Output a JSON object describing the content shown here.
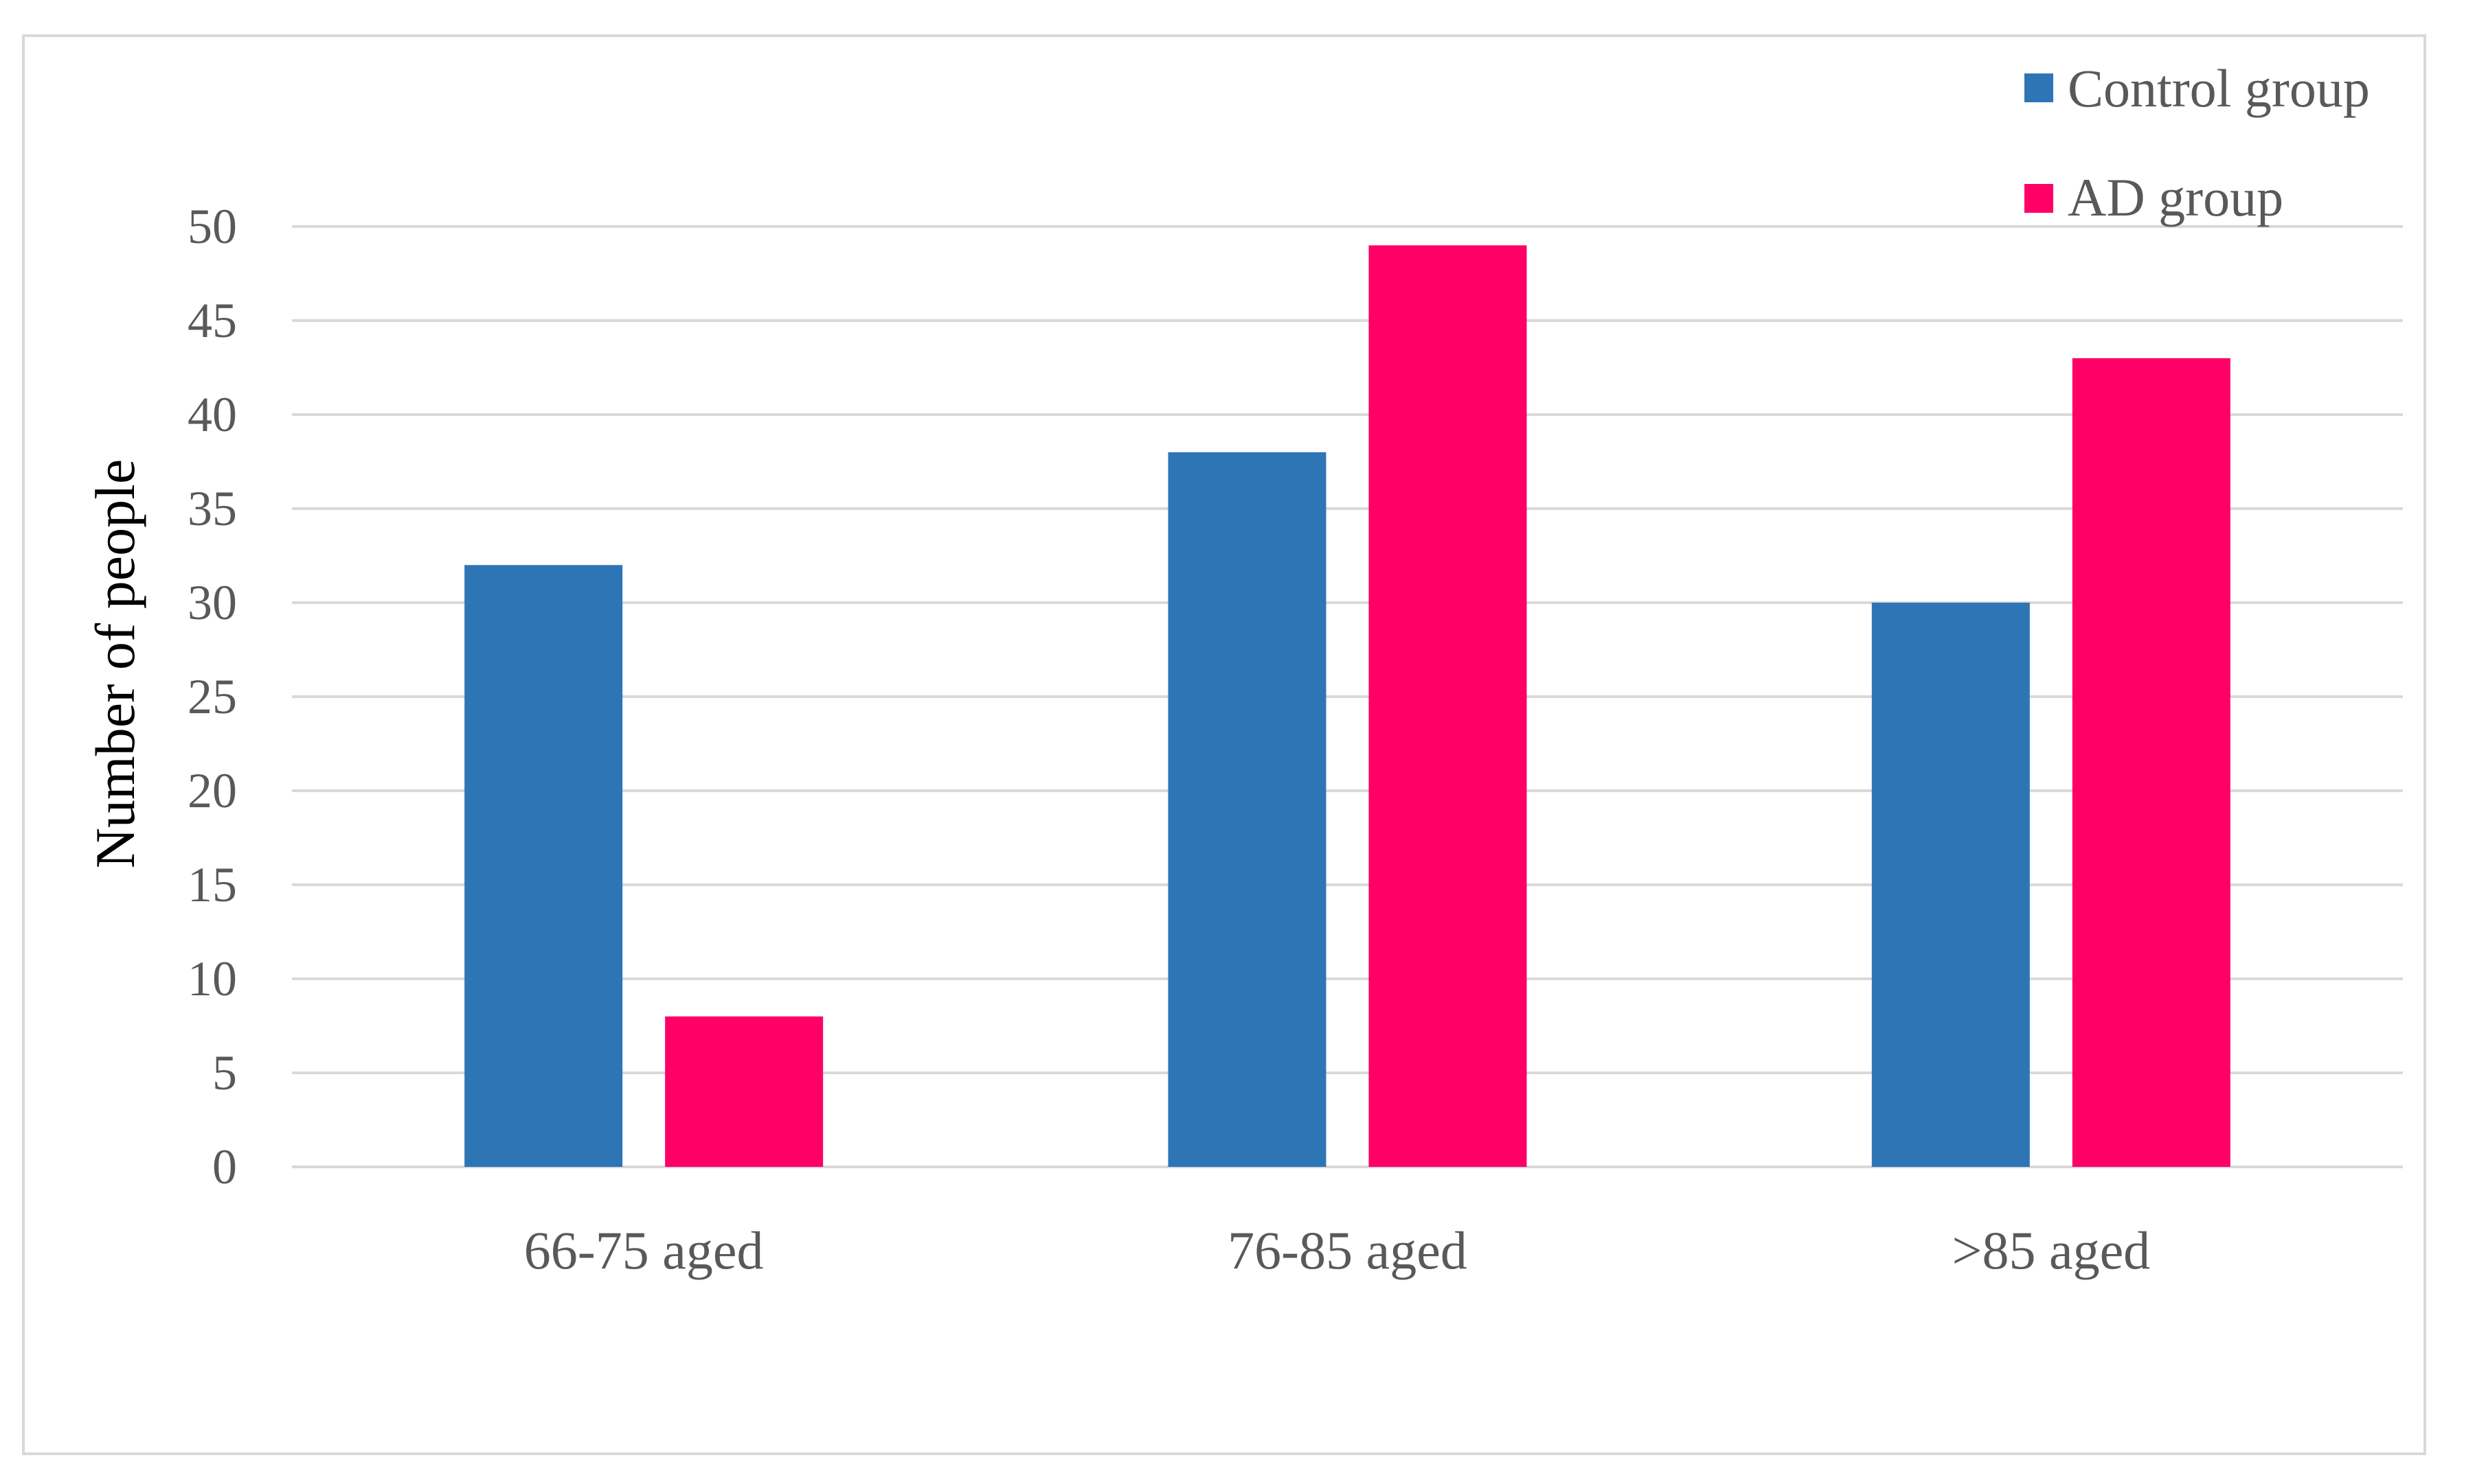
{
  "chart_data": {
    "type": "bar",
    "title": "",
    "xlabel": "",
    "ylabel": "Number of people",
    "categories": [
      "66-75 aged",
      "76-85 aged",
      ">85 aged"
    ],
    "series": [
      {
        "name": "Control group",
        "values": [
          32,
          38,
          30
        ],
        "color": "#2e75b6"
      },
      {
        "name": "AD group",
        "values": [
          8,
          49,
          43
        ],
        "color": "#ff0066"
      }
    ],
    "ylim": [
      0,
      50
    ],
    "yticks": [
      "0",
      "5",
      "10",
      "15",
      "20",
      "25",
      "30",
      "35",
      "40",
      "45",
      "50"
    ],
    "grid": true,
    "legend": "top-right"
  },
  "colors": {
    "grid": "#d9d9d9",
    "text": "#595959"
  }
}
